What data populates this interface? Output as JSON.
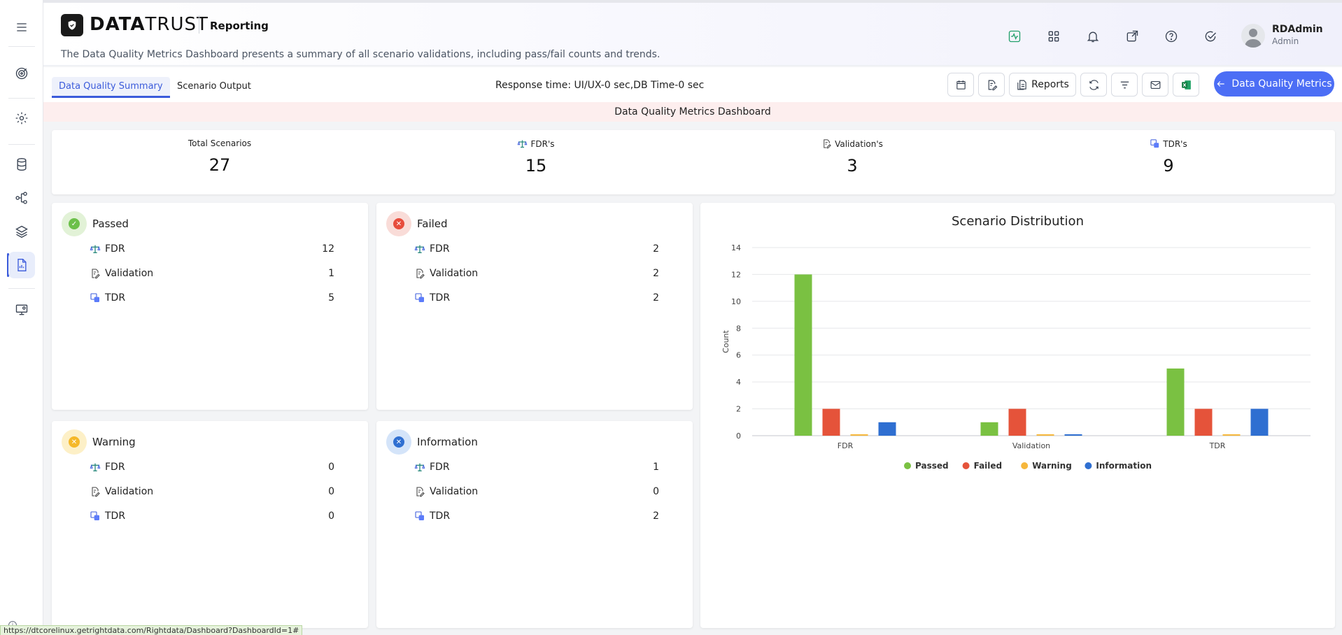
{
  "app": {
    "logo_bold": "DATA",
    "logo_light": "TRUST",
    "module": "Reporting",
    "description": "The Data Quality Metrics Dashboard presents a summary of all scenario validations, including pass/fail counts and trends."
  },
  "user": {
    "name": "RDAdmin",
    "role": "Admin"
  },
  "tabs": [
    {
      "label": "Data Quality Summary",
      "active": true
    },
    {
      "label": "Scenario Output",
      "active": false
    }
  ],
  "response_time": "Response time: UI/UX-0 sec,DB Time-0 sec",
  "toolbar": {
    "reports_label": "Reports",
    "dqm_label": "Data Quality Metrics"
  },
  "banner": "Data Quality Metrics Dashboard",
  "summary": [
    {
      "label": "Total Scenarios",
      "value": "27"
    },
    {
      "label": "FDR's",
      "value": "15"
    },
    {
      "label": "Validation's",
      "value": "3"
    },
    {
      "label": "TDR's",
      "value": "9"
    }
  ],
  "cards": {
    "passed": {
      "title": "Passed",
      "color": "#6cc04a",
      "rows": [
        {
          "label": "FDR",
          "value": "12"
        },
        {
          "label": "Validation",
          "value": "1"
        },
        {
          "label": "TDR",
          "value": "5"
        }
      ]
    },
    "failed": {
      "title": "Failed",
      "color": "#e74c3c",
      "rows": [
        {
          "label": "FDR",
          "value": "2"
        },
        {
          "label": "Validation",
          "value": "2"
        },
        {
          "label": "TDR",
          "value": "2"
        }
      ]
    },
    "warning": {
      "title": "Warning",
      "color": "#f5b829",
      "rows": [
        {
          "label": "FDR",
          "value": "0"
        },
        {
          "label": "Validation",
          "value": "0"
        },
        {
          "label": "TDR",
          "value": "0"
        }
      ]
    },
    "information": {
      "title": "Information",
      "color": "#2f6fd1",
      "rows": [
        {
          "label": "FDR",
          "value": "1"
        },
        {
          "label": "Validation",
          "value": "0"
        },
        {
          "label": "TDR",
          "value": "2"
        }
      ]
    }
  },
  "chart_data": {
    "type": "bar",
    "title": "Scenario Distribution",
    "xlabel": "",
    "ylabel": "Count",
    "ylim": [
      0,
      14
    ],
    "yticks": [
      0,
      2,
      4,
      6,
      8,
      10,
      12,
      14
    ],
    "categories": [
      "FDR",
      "Validation",
      "TDR"
    ],
    "series": [
      {
        "name": "Passed",
        "color": "#7ac142",
        "values": [
          12,
          1,
          5
        ]
      },
      {
        "name": "Failed",
        "color": "#e5533a",
        "values": [
          2,
          2,
          2
        ]
      },
      {
        "name": "Warning",
        "color": "#f6b73c",
        "values": [
          0,
          0,
          0
        ]
      },
      {
        "name": "Information",
        "color": "#2f6fd1",
        "values": [
          1,
          0,
          2
        ]
      }
    ],
    "legend": "bottom",
    "grid": true
  },
  "status_url": "https://dtcorelinux.getrightdata.com/Rightdata/Dashboard?DashboardId=1#"
}
